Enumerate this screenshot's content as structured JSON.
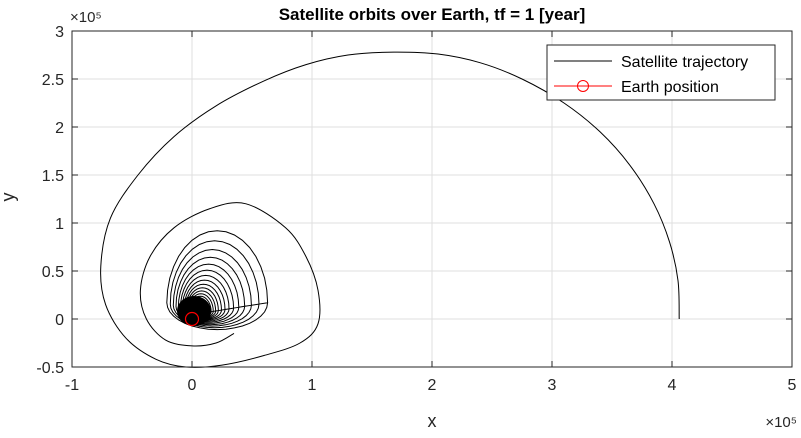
{
  "chart_data": {
    "type": "line",
    "title": "Satellite orbits over Earth, tf = 1 [year]",
    "xlabel": "x",
    "ylabel": "y",
    "xlim": [
      -1,
      5
    ],
    "ylim": [
      -0.5,
      3
    ],
    "x_exponent_label": "×10⁵",
    "y_exponent_label": "×10⁵",
    "x_ticks": [
      -1,
      0,
      1,
      2,
      3,
      4,
      5
    ],
    "x_tick_labels": [
      "-1",
      "0",
      "1",
      "2",
      "3",
      "4",
      "5"
    ],
    "y_ticks": [
      -0.5,
      0,
      0.5,
      1,
      1.5,
      2,
      2.5,
      3
    ],
    "y_tick_labels": [
      "-0.5",
      "0",
      "0.5",
      "1",
      "1.5",
      "2",
      "2.5",
      "3"
    ],
    "grid": true,
    "legend_position": "top-right",
    "series": [
      {
        "name": "Satellite trajectory",
        "color": "#000000",
        "style": "solid line",
        "x": [
          4.06,
          4.05,
          3.98,
          3.85,
          3.65,
          3.4,
          3.1,
          2.75,
          2.4,
          2.05,
          1.68,
          1.3,
          0.95,
          0.6,
          0.2,
          -0.15,
          -0.45,
          -0.68,
          -0.76,
          -0.72,
          -0.55,
          -0.3,
          -0.05,
          0.25,
          0.6,
          0.9,
          1.05,
          1.05,
          0.95,
          0.78,
          0.45,
          0.15,
          -0.15,
          -0.35,
          -0.43,
          -0.38,
          -0.22,
          0.0,
          0.2,
          0.35
        ],
        "y": [
          0.0,
          0.4,
          0.8,
          1.2,
          1.6,
          1.95,
          2.25,
          2.5,
          2.67,
          2.76,
          2.78,
          2.75,
          2.65,
          2.48,
          2.22,
          1.9,
          1.5,
          1.05,
          0.55,
          0.15,
          -0.2,
          -0.42,
          -0.5,
          -0.48,
          -0.38,
          -0.25,
          -0.05,
          0.3,
          0.65,
          0.95,
          1.2,
          1.15,
          0.95,
          0.65,
          0.3,
          0.0,
          -0.22,
          -0.28,
          -0.25,
          -0.15
        ]
      },
      {
        "name": "Earth position",
        "color": "#ff0000",
        "marker": "circle",
        "x": [
          0
        ],
        "y": [
          0
        ]
      }
    ]
  }
}
